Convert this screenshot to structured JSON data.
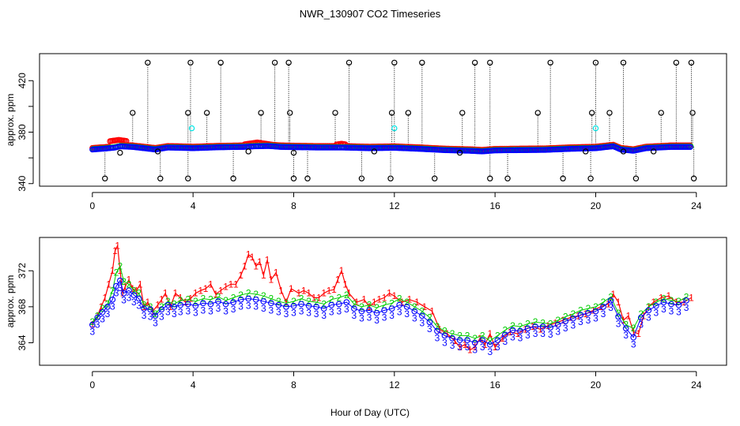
{
  "chart_data": [
    {
      "type": "scatter",
      "panel": "top",
      "title": "NWR_130907  CO2 Timeseries",
      "ylabel": "approx. ppm",
      "xlim": [
        -2.1,
        25.2
      ],
      "ylim": [
        338,
        441
      ],
      "xticks": [
        0,
        4,
        8,
        12,
        16,
        20,
        24
      ],
      "yticks": [
        340,
        360,
        380,
        400,
        420
      ],
      "ytick_labels": [
        "340",
        "",
        "380",
        "",
        "420"
      ],
      "series_colors": {
        "black": "#000000",
        "red": "#ff0000",
        "green": "#00cc00",
        "blue": "#0000ff",
        "cyan": "#00e5e5"
      },
      "baseline_keypoints": {
        "x": [
          0,
          0.5,
          0.9,
          1.1,
          1.6,
          2.5,
          3.0,
          3.5,
          4.0,
          5.0,
          6.0,
          6.5,
          7.0,
          7.5,
          8.0,
          9.0,
          10.0,
          11.0,
          12.0,
          13.0,
          14.0,
          15.0,
          15.5,
          16.0,
          17.0,
          18.0,
          19.0,
          20.0,
          20.7,
          21.0,
          21.5,
          22.0,
          23.0,
          23.8
        ],
        "y": [
          366.5,
          367.2,
          368.0,
          369.0,
          368.5,
          366.5,
          368.0,
          367.8,
          367.5,
          368.2,
          368.5,
          369.0,
          369.2,
          368.5,
          368.3,
          368.0,
          368.0,
          367.5,
          367.8,
          367.0,
          366.0,
          365.5,
          365.0,
          365.8,
          366.0,
          366.2,
          367.0,
          367.5,
          369.0,
          366.5,
          365.5,
          367.5,
          368.5,
          368.5
        ]
      },
      "high_spikes_x": [
        2.2,
        3.9,
        5.1,
        7.25,
        7.8,
        10.2,
        12.0,
        13.1,
        15.2,
        15.8,
        18.2,
        20.0,
        21.1,
        23.2,
        23.8
      ],
      "high_spike_y": 434,
      "mid_spikes_x": [
        1.6,
        3.8,
        4.55,
        6.7,
        7.85,
        9.65,
        11.9,
        12.55,
        14.7,
        17.7,
        19.85,
        20.55,
        22.6,
        23.85
      ],
      "mid_spike_y": 395,
      "low_spikes_x": [
        0.5,
        2.7,
        3.8,
        5.6,
        8.0,
        8.55,
        10.7,
        11.85,
        13.6,
        15.8,
        16.5,
        18.7,
        19.8,
        21.6,
        23.9
      ],
      "low_spike_y": 344,
      "other_black_points": {
        "x": [
          2.6,
          6.2,
          8.0,
          11.2,
          14.6,
          19.6,
          21.1,
          22.3,
          1.1
        ],
        "y": [
          365,
          365,
          364,
          365,
          364,
          365,
          365,
          365,
          364
        ]
      },
      "cyan_points": {
        "x": [
          3.95,
          12.0,
          20.0
        ],
        "y": [
          383,
          383,
          383
        ]
      },
      "red_bumps": [
        {
          "x0": 0.7,
          "x1": 1.4,
          "y": 374
        },
        {
          "x0": 6.0,
          "x1": 7.1,
          "y": 372
        },
        {
          "x0": 9.7,
          "x1": 10.1,
          "y": 371
        }
      ]
    },
    {
      "type": "scatter",
      "panel": "bottom",
      "title": "",
      "xlabel": "Hour of Day (UTC)",
      "ylabel": "approx. ppm",
      "xlim": [
        -2.1,
        25.2
      ],
      "ylim": [
        361.5,
        375.7
      ],
      "xticks": [
        0,
        4,
        8,
        12,
        16,
        20,
        24
      ],
      "yticks": [
        364,
        368,
        372
      ],
      "series": [
        {
          "name": "1",
          "color": "#ff0000",
          "x": [
            0,
            0.2,
            0.35,
            0.5,
            0.65,
            0.8,
            0.9,
            1.0,
            1.1,
            1.2,
            1.3,
            1.45,
            1.6,
            1.75,
            1.9,
            2.05,
            2.2,
            2.4,
            2.6,
            2.75,
            2.9,
            3.1,
            3.3,
            3.5,
            3.7,
            3.9,
            4.1,
            4.3,
            4.5,
            4.7,
            4.9,
            5.1,
            5.3,
            5.5,
            5.7,
            5.9,
            6.05,
            6.2,
            6.35,
            6.5,
            6.65,
            6.8,
            6.95,
            7.1,
            7.3,
            7.5,
            7.7,
            7.9,
            8.2,
            8.4,
            8.6,
            8.8,
            9.0,
            9.2,
            9.4,
            9.6,
            9.75,
            9.9,
            10.05,
            10.2,
            10.5,
            10.8,
            11.0,
            11.2,
            11.4,
            11.6,
            11.8,
            12.0,
            12.3,
            12.6,
            12.9,
            13.2,
            13.5,
            13.8,
            14.1,
            14.4,
            14.6,
            14.8,
            15.0,
            15.2,
            15.4,
            15.6,
            15.8,
            16.0,
            16.3,
            16.6,
            16.9,
            17.2,
            17.5,
            17.8,
            18.1,
            18.4,
            18.7,
            19.0,
            19.3,
            19.6,
            19.9,
            20.2,
            20.5,
            20.7,
            20.9,
            21.1,
            21.3,
            21.5,
            21.7,
            21.9,
            22.1,
            22.3,
            22.6,
            22.9,
            23.2,
            23.5,
            23.8
          ],
          "y": [
            366.0,
            367.0,
            368.0,
            369.0,
            370.5,
            372.0,
            374.2,
            374.8,
            372.0,
            369.5,
            370.2,
            371.0,
            370.0,
            369.8,
            370.5,
            368.0,
            368.5,
            367.5,
            368.2,
            368.8,
            369.5,
            368.0,
            369.5,
            369.0,
            368.5,
            368.9,
            369.5,
            369.8,
            370.0,
            370.5,
            369.4,
            369.8,
            370.2,
            370.5,
            370.5,
            371.5,
            372.5,
            373.8,
            373.5,
            372.5,
            373.0,
            371.5,
            373.2,
            371.0,
            371.8,
            369.8,
            368.5,
            370.0,
            369.5,
            369.8,
            369.5,
            369.0,
            369.0,
            369.5,
            369.8,
            369.9,
            371.0,
            372.0,
            370.5,
            369.5,
            368.5,
            368.8,
            368.0,
            368.5,
            368.8,
            369.0,
            369.5,
            369.2,
            368.5,
            368.8,
            368.5,
            368.0,
            367.5,
            365.5,
            365.0,
            364.2,
            363.5,
            363.8,
            363.2,
            363.5,
            364.5,
            363.8,
            365.0,
            363.5,
            364.5,
            365.2,
            365.0,
            365.5,
            365.8,
            365.5,
            365.9,
            366.2,
            366.5,
            366.8,
            367.0,
            367.2,
            367.6,
            368.0,
            368.3,
            369.4,
            368.5,
            366.5,
            367.0,
            365.2,
            365.0,
            367.0,
            368.0,
            368.5,
            369.0,
            369.2,
            368.5,
            368.5,
            369.0
          ]
        },
        {
          "name": "2",
          "color": "#00cc00",
          "x": [
            0,
            0.2,
            0.4,
            0.6,
            0.8,
            0.95,
            1.1,
            1.25,
            1.45,
            1.65,
            1.85,
            2.05,
            2.3,
            2.5,
            2.75,
            3.0,
            3.25,
            3.5,
            3.8,
            4.1,
            4.4,
            4.7,
            5.0,
            5.3,
            5.6,
            5.9,
            6.2,
            6.5,
            6.8,
            7.1,
            7.4,
            7.7,
            8.0,
            8.3,
            8.6,
            8.9,
            9.2,
            9.5,
            9.8,
            10.1,
            10.4,
            10.7,
            11.0,
            11.3,
            11.6,
            11.9,
            12.2,
            12.5,
            12.8,
            13.1,
            13.4,
            13.7,
            14.0,
            14.3,
            14.6,
            14.9,
            15.2,
            15.5,
            15.8,
            16.1,
            16.4,
            16.7,
            17.0,
            17.3,
            17.6,
            17.9,
            18.2,
            18.5,
            18.8,
            19.1,
            19.4,
            19.7,
            20.0,
            20.3,
            20.6,
            20.9,
            21.2,
            21.5,
            21.8,
            22.1,
            22.4,
            22.7,
            23.0,
            23.3,
            23.6
          ],
          "y": [
            366.3,
            367.0,
            367.8,
            368.3,
            369.8,
            371.8,
            372.5,
            370.8,
            370.5,
            369.8,
            369.5,
            368.2,
            368.0,
            367.2,
            368.0,
            368.6,
            368.3,
            368.7,
            368.8,
            368.6,
            368.9,
            368.8,
            369.1,
            368.7,
            369.0,
            369.3,
            369.5,
            369.4,
            369.2,
            368.9,
            368.6,
            368.4,
            368.6,
            368.9,
            368.6,
            368.5,
            368.3,
            368.8,
            369.0,
            369.3,
            368.3,
            368.0,
            368.2,
            367.9,
            368.2,
            368.4,
            368.9,
            368.5,
            368.0,
            367.5,
            366.8,
            365.8,
            365.3,
            365.0,
            364.8,
            364.8,
            364.5,
            364.8,
            364.2,
            364.8,
            365.4,
            365.9,
            365.8,
            366.1,
            366.3,
            366.2,
            366.1,
            366.5,
            366.9,
            367.2,
            367.6,
            367.8,
            368.0,
            368.5,
            369.1,
            367.3,
            366.0,
            365.6,
            367.2,
            368.0,
            368.5,
            368.9,
            368.7,
            368.6,
            369.1
          ]
        },
        {
          "name": "3",
          "color": "#0000ff",
          "x": [
            0,
            0.2,
            0.4,
            0.6,
            0.8,
            0.95,
            1.1,
            1.25,
            1.45,
            1.65,
            1.85,
            2.05,
            2.3,
            2.5,
            2.75,
            3.0,
            3.25,
            3.5,
            3.8,
            4.1,
            4.4,
            4.7,
            5.0,
            5.3,
            5.6,
            5.9,
            6.2,
            6.5,
            6.8,
            7.1,
            7.4,
            7.7,
            8.0,
            8.3,
            8.6,
            8.9,
            9.2,
            9.5,
            9.8,
            10.1,
            10.4,
            10.7,
            11.0,
            11.3,
            11.6,
            11.9,
            12.2,
            12.5,
            12.8,
            13.1,
            13.4,
            13.7,
            14.0,
            14.3,
            14.6,
            14.9,
            15.2,
            15.5,
            15.8,
            16.1,
            16.4,
            16.7,
            17.0,
            17.3,
            17.6,
            17.9,
            18.2,
            18.5,
            18.8,
            19.1,
            19.4,
            19.7,
            20.0,
            20.3,
            20.6,
            20.9,
            21.2,
            21.5,
            21.8,
            22.1,
            22.4,
            22.7,
            23.0,
            23.3,
            23.6
          ],
          "y": [
            366.0,
            366.8,
            367.4,
            368.0,
            368.8,
            370.3,
            370.9,
            369.5,
            369.8,
            369.3,
            368.9,
            367.8,
            367.7,
            367.0,
            367.7,
            368.2,
            368.0,
            368.2,
            368.3,
            368.1,
            368.4,
            368.3,
            368.6,
            368.3,
            368.5,
            368.8,
            368.9,
            368.8,
            368.6,
            368.4,
            368.2,
            368.0,
            368.1,
            368.3,
            368.1,
            368.0,
            367.8,
            368.2,
            368.3,
            368.5,
            367.8,
            367.5,
            367.6,
            367.3,
            367.6,
            367.8,
            368.2,
            368.0,
            367.5,
            367.0,
            366.3,
            365.3,
            364.8,
            364.5,
            364.3,
            364.3,
            364.0,
            364.3,
            363.8,
            364.3,
            364.9,
            365.4,
            365.3,
            365.6,
            365.8,
            365.8,
            365.7,
            366.0,
            366.4,
            366.7,
            367.1,
            367.3,
            367.5,
            368.0,
            368.7,
            366.9,
            365.6,
            364.6,
            366.8,
            367.6,
            368.1,
            368.5,
            368.3,
            368.2,
            368.7
          ]
        }
      ]
    }
  ]
}
